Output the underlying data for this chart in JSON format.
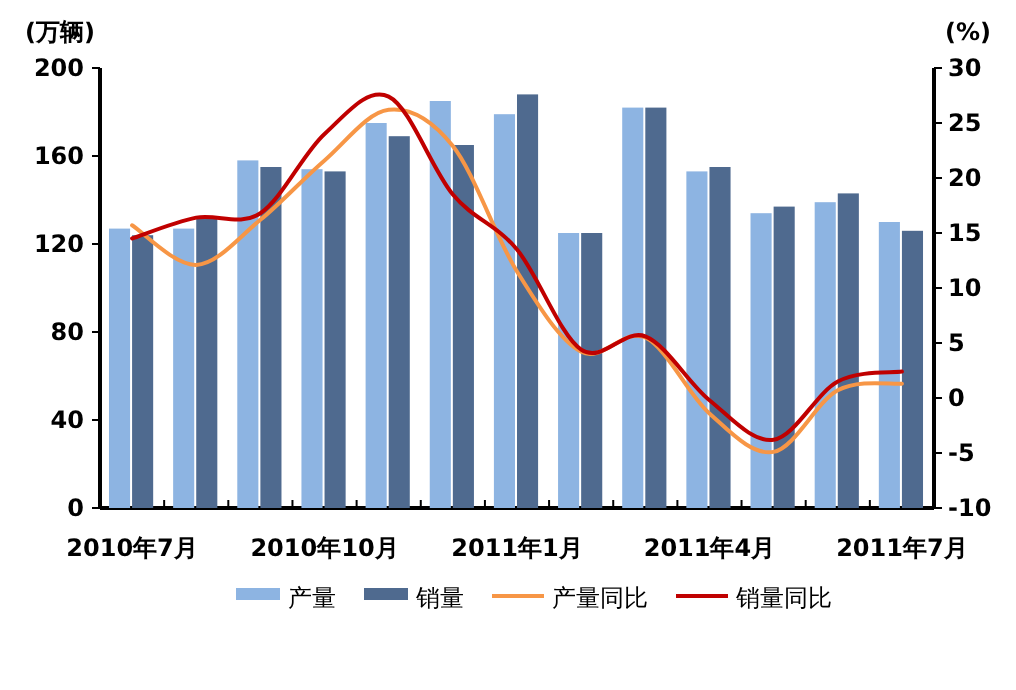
{
  "chart_data": {
    "type": "bar",
    "ylabel": "(万辆)",
    "y2label": "(%)",
    "categories": [
      "2010年7月",
      null,
      null,
      "2010年10月",
      null,
      null,
      "2011年1月",
      null,
      null,
      "2011年4月",
      null,
      null,
      "2011年7月"
    ],
    "series": [
      {
        "name": "产量",
        "color": "#8db4e2",
        "values": [
          127,
          127,
          158,
          154,
          175,
          185,
          179,
          125,
          182,
          153,
          134,
          139,
          130
        ]
      },
      {
        "name": "销量",
        "color": "#4f6a8f",
        "values": [
          124,
          132,
          155,
          153,
          169,
          165,
          188,
          125,
          182,
          155,
          137,
          143,
          126
        ]
      },
      {
        "name": "产量同比",
        "type": "line",
        "axis": "y2",
        "color": "#f79646",
        "values": [
          15.7,
          12.1,
          16.2,
          21.6,
          26.2,
          22.9,
          11.5,
          4.2,
          5.5,
          -1.4,
          -4.9,
          0.7,
          1.3
        ]
      },
      {
        "name": "销量同比",
        "type": "line",
        "axis": "y2",
        "color": "#c00000",
        "values": [
          14.5,
          16.4,
          16.8,
          24,
          27.4,
          18.5,
          13.5,
          4.4,
          5.6,
          -0.2,
          -3.8,
          1.5,
          2.4
        ]
      }
    ],
    "ylim": [
      0,
      200
    ],
    "yticks": [
      0,
      40,
      80,
      120,
      160,
      200
    ],
    "y2lim": [
      -10,
      30
    ],
    "y2ticks": [
      -10,
      -5,
      0,
      5,
      10,
      15,
      20,
      25,
      30
    ],
    "legend": "bottom"
  }
}
